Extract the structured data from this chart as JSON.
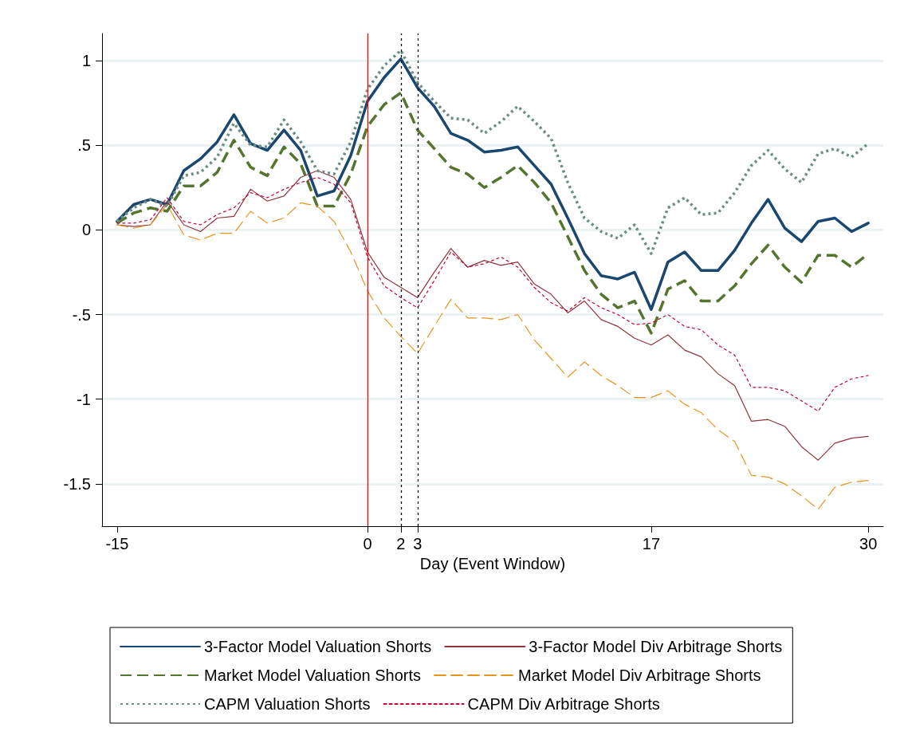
{
  "chart_data": {
    "type": "line",
    "xlabel": "Day (Event Window)",
    "x": [
      -15,
      -14,
      -13,
      -12,
      -11,
      -10,
      -9,
      -8,
      -7,
      -6,
      -5,
      -4,
      -3,
      -2,
      -1,
      0,
      1,
      2,
      3,
      4,
      5,
      6,
      7,
      8,
      9,
      10,
      11,
      12,
      13,
      14,
      15,
      16,
      17,
      18,
      19,
      20,
      21,
      22,
      23,
      24,
      25,
      26,
      27,
      28,
      29,
      30
    ],
    "series": [
      {
        "name": "3-Factor Model Valuation Shorts",
        "color": "#1a476f",
        "line_style": "solid",
        "values": [
          0.05,
          0.15,
          0.18,
          0.15,
          0.35,
          0.42,
          0.52,
          0.68,
          0.51,
          0.47,
          0.59,
          0.47,
          0.2,
          0.23,
          0.44,
          0.76,
          0.9,
          1.01,
          0.84,
          0.73,
          0.57,
          0.53,
          0.46,
          0.47,
          0.49,
          0.38,
          0.27,
          0.07,
          -0.14,
          -0.27,
          -0.29,
          -0.25,
          -0.47,
          -0.19,
          -0.13,
          -0.24,
          -0.24,
          -0.12,
          0.04,
          0.18,
          0.01,
          -0.07,
          0.05,
          0.07,
          -0.01,
          0.04
        ]
      },
      {
        "name": "3-Factor Model Div Arbitrage Shorts",
        "color": "#90353b",
        "line_style": "solid",
        "values": [
          0.03,
          0.02,
          0.03,
          0.17,
          0.03,
          -0.01,
          0.07,
          0.08,
          0.24,
          0.17,
          0.2,
          0.31,
          0.35,
          0.31,
          0.18,
          -0.13,
          -0.28,
          -0.34,
          -0.4,
          -0.25,
          -0.11,
          -0.22,
          -0.18,
          -0.21,
          -0.19,
          -0.32,
          -0.38,
          -0.49,
          -0.42,
          -0.53,
          -0.57,
          -0.64,
          -0.68,
          -0.62,
          -0.71,
          -0.75,
          -0.85,
          -0.92,
          -1.13,
          -1.12,
          -1.16,
          -1.28,
          -1.36,
          -1.26,
          -1.23,
          -1.22
        ]
      },
      {
        "name": "Market Model Valuation Shorts",
        "color": "#55752f",
        "line_style": "dashed",
        "values": [
          0.04,
          0.1,
          0.13,
          0.11,
          0.26,
          0.26,
          0.34,
          0.53,
          0.37,
          0.32,
          0.49,
          0.39,
          0.14,
          0.14,
          0.33,
          0.61,
          0.74,
          0.81,
          0.59,
          0.48,
          0.37,
          0.33,
          0.25,
          0.31,
          0.38,
          0.28,
          0.16,
          -0.04,
          -0.24,
          -0.38,
          -0.46,
          -0.42,
          -0.61,
          -0.35,
          -0.3,
          -0.42,
          -0.42,
          -0.33,
          -0.2,
          -0.09,
          -0.22,
          -0.31,
          -0.15,
          -0.15,
          -0.22,
          -0.14
        ]
      },
      {
        "name": "Market Model Div Arbitrage Shorts",
        "color": "#e8951e",
        "line_style": "dashed",
        "values": [
          0.03,
          0.01,
          0.03,
          0.15,
          -0.03,
          -0.06,
          -0.02,
          -0.02,
          0.11,
          0.04,
          0.07,
          0.16,
          0.14,
          0.05,
          -0.13,
          -0.36,
          -0.52,
          -0.63,
          -0.73,
          -0.57,
          -0.41,
          -0.52,
          -0.52,
          -0.53,
          -0.5,
          -0.65,
          -0.76,
          -0.87,
          -0.78,
          -0.86,
          -0.92,
          -0.99,
          -0.99,
          -0.95,
          -1.03,
          -1.08,
          -1.18,
          -1.25,
          -1.45,
          -1.46,
          -1.5,
          -1.57,
          -1.65,
          -1.52,
          -1.49,
          -1.48
        ]
      },
      {
        "name": "CAPM Valuation Shorts",
        "color": "#6e8e84",
        "line_style": "dotted",
        "values": [
          0.05,
          0.13,
          0.18,
          0.14,
          0.32,
          0.34,
          0.43,
          0.63,
          0.5,
          0.49,
          0.65,
          0.52,
          0.35,
          0.33,
          0.52,
          0.83,
          0.97,
          1.06,
          0.87,
          0.76,
          0.66,
          0.65,
          0.57,
          0.64,
          0.73,
          0.64,
          0.54,
          0.28,
          0.07,
          -0.01,
          -0.05,
          0.03,
          -0.14,
          0.13,
          0.19,
          0.09,
          0.1,
          0.22,
          0.38,
          0.47,
          0.36,
          0.28,
          0.45,
          0.48,
          0.43,
          0.51
        ]
      },
      {
        "name": "CAPM Div Arbitrage Shorts",
        "color": "#c10534",
        "line_style": "dotted",
        "values": [
          0.04,
          0.04,
          0.06,
          0.19,
          0.05,
          0.03,
          0.09,
          0.13,
          0.22,
          0.19,
          0.24,
          0.28,
          0.31,
          0.27,
          0.16,
          -0.16,
          -0.33,
          -0.4,
          -0.46,
          -0.3,
          -0.13,
          -0.22,
          -0.2,
          -0.16,
          -0.22,
          -0.34,
          -0.43,
          -0.48,
          -0.4,
          -0.46,
          -0.5,
          -0.56,
          -0.55,
          -0.5,
          -0.57,
          -0.59,
          -0.68,
          -0.74,
          -0.93,
          -0.93,
          -0.95,
          -1.01,
          -1.07,
          -0.93,
          -0.88,
          -0.86
        ]
      }
    ],
    "xlim": [
      -15.9,
      30.9
    ],
    "xticks": [
      -15,
      0,
      2,
      3,
      17,
      30
    ],
    "ylim": [
      -1.75,
      1.16
    ],
    "yticks": [
      {
        "value": -1.5,
        "label": "-1.5"
      },
      {
        "value": -1,
        "label": "-1"
      },
      {
        "value": -0.5,
        "label": "-.5"
      },
      {
        "value": 0,
        "label": "0"
      },
      {
        "value": 0.5,
        "label": ".5"
      },
      {
        "value": 1,
        "label": "1"
      }
    ],
    "ref_lines": [
      {
        "axis": "x",
        "value": 0,
        "color": "#ff0000",
        "line_style": "solid"
      },
      {
        "axis": "x",
        "value": 2,
        "color": "#000000",
        "line_style": "dotted"
      },
      {
        "axis": "x",
        "value": 3,
        "color": "#000000",
        "line_style": "dotted"
      }
    ],
    "grid": "y",
    "legend": "bottom",
    "marker": "none"
  }
}
